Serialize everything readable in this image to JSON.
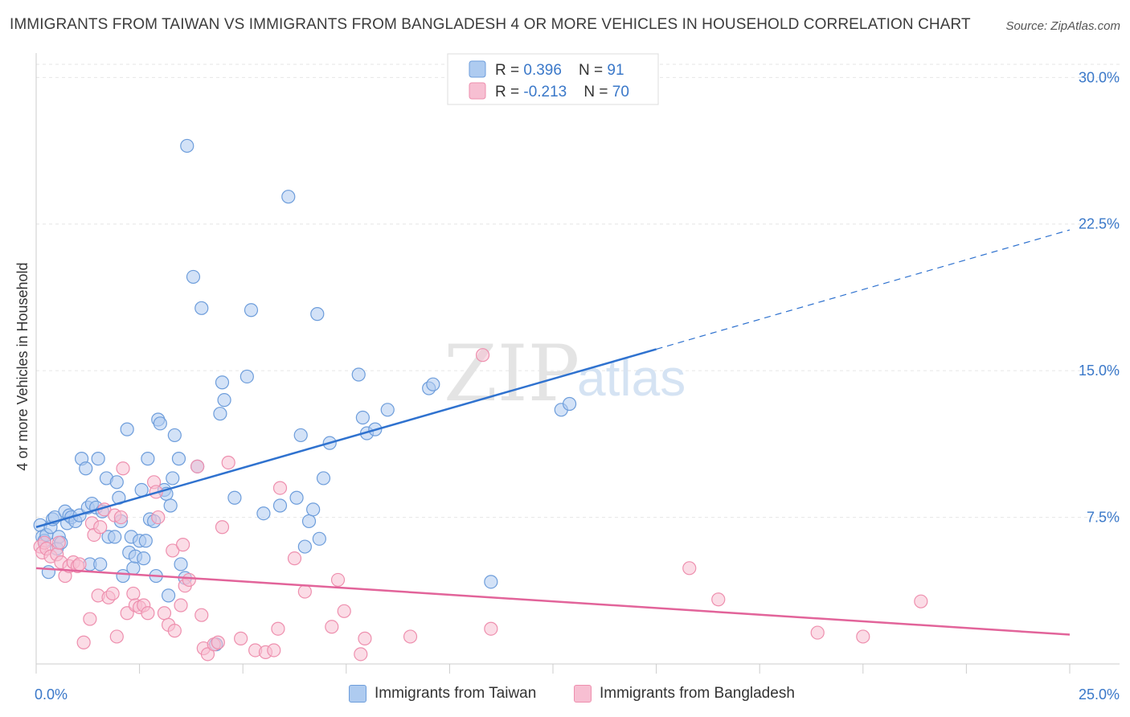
{
  "title": "IMMIGRANTS FROM TAIWAN VS IMMIGRANTS FROM BANGLADESH 4 OR MORE VEHICLES IN HOUSEHOLD CORRELATION CHART",
  "source": "Source: ZipAtlas.com",
  "watermark": {
    "zip": "ZIP",
    "atlas": "atlas"
  },
  "colors": {
    "taiwan_fill": "#aecbf0",
    "taiwan_stroke": "#6d9ddb",
    "taiwan_line": "#2f72cf",
    "bangladesh_fill": "#f7bfd2",
    "bangladesh_stroke": "#ee8fae",
    "bangladesh_line": "#e2649a",
    "tick_text": "#3a78c9",
    "grid": "#e6e6e6"
  },
  "stats": [
    {
      "r_label": "R = ",
      "r_value": "0.396",
      "n_label": "N = ",
      "n_value": "91"
    },
    {
      "r_label": "R = ",
      "r_value": "-0.213",
      "n_label": "N = ",
      "n_value": "70"
    }
  ],
  "bottom_legend": [
    {
      "label": "Immigrants from Taiwan",
      "color": "#aecbf0",
      "border": "#6d9ddb"
    },
    {
      "label": "Immigrants from Bangladesh",
      "color": "#f7bfd2",
      "border": "#ee8fae"
    }
  ],
  "chart_data": {
    "type": "scatter",
    "title": "IMMIGRANTS FROM TAIWAN VS IMMIGRANTS FROM BANGLADESH 4 OR MORE VEHICLES IN HOUSEHOLD CORRELATION CHART",
    "xlabel": "",
    "ylabel": "4 or more Vehicles in Household",
    "xlim": [
      0,
      25
    ],
    "ylim": [
      0,
      31
    ],
    "x_ticks": [
      {
        "v": 0,
        "label": "0.0%"
      },
      {
        "v": 25,
        "label": "25.0%"
      }
    ],
    "y_ticks": [
      {
        "v": 7.5,
        "label": "7.5%"
      },
      {
        "v": 15,
        "label": "15.0%"
      },
      {
        "v": 22.5,
        "label": "22.5%"
      },
      {
        "v": 30,
        "label": "30.0%"
      }
    ],
    "grid": true,
    "legend_position": "top-center",
    "series": [
      {
        "name": "Immigrants from Taiwan",
        "trend": {
          "x0": 0,
          "y0": 7.0,
          "x1": 15,
          "y1": 16.1,
          "x_dash_end": 25,
          "y_dash_end": 22.2
        },
        "points": [
          [
            0.1,
            7.1
          ],
          [
            0.15,
            6.5
          ],
          [
            0.2,
            6.3
          ],
          [
            0.25,
            6.6
          ],
          [
            0.3,
            4.7
          ],
          [
            0.35,
            7.0
          ],
          [
            0.4,
            7.4
          ],
          [
            0.45,
            7.5
          ],
          [
            0.5,
            5.9
          ],
          [
            0.55,
            6.5
          ],
          [
            0.6,
            6.2
          ],
          [
            0.7,
            7.8
          ],
          [
            0.75,
            7.2
          ],
          [
            0.8,
            7.6
          ],
          [
            0.85,
            7.5
          ],
          [
            0.95,
            7.3
          ],
          [
            1.05,
            7.6
          ],
          [
            1.1,
            10.5
          ],
          [
            1.2,
            10.0
          ],
          [
            1.25,
            8.0
          ],
          [
            1.3,
            5.1
          ],
          [
            1.35,
            8.2
          ],
          [
            1.45,
            8.0
          ],
          [
            1.5,
            10.5
          ],
          [
            1.55,
            5.1
          ],
          [
            1.6,
            7.8
          ],
          [
            1.7,
            9.5
          ],
          [
            1.75,
            6.5
          ],
          [
            1.9,
            6.5
          ],
          [
            1.95,
            9.3
          ],
          [
            2.0,
            8.5
          ],
          [
            2.05,
            7.3
          ],
          [
            2.1,
            4.5
          ],
          [
            2.2,
            12.0
          ],
          [
            2.25,
            5.7
          ],
          [
            2.3,
            6.5
          ],
          [
            2.35,
            4.9
          ],
          [
            2.4,
            5.5
          ],
          [
            2.5,
            6.3
          ],
          [
            2.55,
            8.9
          ],
          [
            2.6,
            5.4
          ],
          [
            2.65,
            6.3
          ],
          [
            2.7,
            10.5
          ],
          [
            2.75,
            7.4
          ],
          [
            2.85,
            7.3
          ],
          [
            2.9,
            4.5
          ],
          [
            2.95,
            12.5
          ],
          [
            3.0,
            12.3
          ],
          [
            3.1,
            8.9
          ],
          [
            3.15,
            8.7
          ],
          [
            3.2,
            3.5
          ],
          [
            3.25,
            8.1
          ],
          [
            3.3,
            9.5
          ],
          [
            3.35,
            11.7
          ],
          [
            3.45,
            10.5
          ],
          [
            3.5,
            5.1
          ],
          [
            3.6,
            4.4
          ],
          [
            3.65,
            26.5
          ],
          [
            3.8,
            19.8
          ],
          [
            3.9,
            10.1
          ],
          [
            4.0,
            18.2
          ],
          [
            4.35,
            1.0
          ],
          [
            4.45,
            12.8
          ],
          [
            4.5,
            14.4
          ],
          [
            4.55,
            13.5
          ],
          [
            4.8,
            8.5
          ],
          [
            5.1,
            14.7
          ],
          [
            5.2,
            18.1
          ],
          [
            5.5,
            7.7
          ],
          [
            5.9,
            8.1
          ],
          [
            6.1,
            23.9
          ],
          [
            6.3,
            8.5
          ],
          [
            6.4,
            11.7
          ],
          [
            6.5,
            6.0
          ],
          [
            6.6,
            7.3
          ],
          [
            6.7,
            7.9
          ],
          [
            6.8,
            17.9
          ],
          [
            6.85,
            6.4
          ],
          [
            6.95,
            9.5
          ],
          [
            7.1,
            11.3
          ],
          [
            7.8,
            14.8
          ],
          [
            7.9,
            12.6
          ],
          [
            8.0,
            11.8
          ],
          [
            8.2,
            12.0
          ],
          [
            8.5,
            13.0
          ],
          [
            9.5,
            14.1
          ],
          [
            9.6,
            14.3
          ],
          [
            11.0,
            4.2
          ],
          [
            12.7,
            13.0
          ],
          [
            12.9,
            13.3
          ]
        ]
      },
      {
        "name": "Immigrants from Bangladesh",
        "trend": {
          "x0": 0,
          "y0": 4.9,
          "x1": 25,
          "y1": 1.5
        },
        "points": [
          [
            0.1,
            6.0
          ],
          [
            0.15,
            5.7
          ],
          [
            0.2,
            6.2
          ],
          [
            0.25,
            5.9
          ],
          [
            0.35,
            5.5
          ],
          [
            0.5,
            5.6
          ],
          [
            0.55,
            6.2
          ],
          [
            0.6,
            5.2
          ],
          [
            0.7,
            4.5
          ],
          [
            0.8,
            5.0
          ],
          [
            0.9,
            5.2
          ],
          [
            1.0,
            5.0
          ],
          [
            1.05,
            5.1
          ],
          [
            1.15,
            1.1
          ],
          [
            1.3,
            2.3
          ],
          [
            1.35,
            7.2
          ],
          [
            1.4,
            6.6
          ],
          [
            1.5,
            3.5
          ],
          [
            1.55,
            7.0
          ],
          [
            1.65,
            7.9
          ],
          [
            1.75,
            3.4
          ],
          [
            1.85,
            3.6
          ],
          [
            1.9,
            7.6
          ],
          [
            1.95,
            1.4
          ],
          [
            2.05,
            7.5
          ],
          [
            2.1,
            10.0
          ],
          [
            2.2,
            2.6
          ],
          [
            2.35,
            3.6
          ],
          [
            2.4,
            3.0
          ],
          [
            2.5,
            2.9
          ],
          [
            2.6,
            3.0
          ],
          [
            2.7,
            2.6
          ],
          [
            2.85,
            9.3
          ],
          [
            2.9,
            8.8
          ],
          [
            2.95,
            7.5
          ],
          [
            3.1,
            2.6
          ],
          [
            3.2,
            2.0
          ],
          [
            3.3,
            5.8
          ],
          [
            3.35,
            1.7
          ],
          [
            3.5,
            3.0
          ],
          [
            3.55,
            6.1
          ],
          [
            3.6,
            4.0
          ],
          [
            3.7,
            4.3
          ],
          [
            3.9,
            10.1
          ],
          [
            4.0,
            2.5
          ],
          [
            4.05,
            0.8
          ],
          [
            4.15,
            0.5
          ],
          [
            4.3,
            1.0
          ],
          [
            4.4,
            1.1
          ],
          [
            4.5,
            7.0
          ],
          [
            4.65,
            10.3
          ],
          [
            4.95,
            1.3
          ],
          [
            5.3,
            0.7
          ],
          [
            5.55,
            0.6
          ],
          [
            5.75,
            0.7
          ],
          [
            5.85,
            1.8
          ],
          [
            5.9,
            9.0
          ],
          [
            6.25,
            5.4
          ],
          [
            6.5,
            3.7
          ],
          [
            7.15,
            1.9
          ],
          [
            7.3,
            4.3
          ],
          [
            7.45,
            2.7
          ],
          [
            7.85,
            0.5
          ],
          [
            7.95,
            1.3
          ],
          [
            9.05,
            1.4
          ],
          [
            10.8,
            15.8
          ],
          [
            11.0,
            1.8
          ],
          [
            15.8,
            4.9
          ],
          [
            16.5,
            3.3
          ],
          [
            18.9,
            1.6
          ],
          [
            20.0,
            1.4
          ],
          [
            21.4,
            3.2
          ]
        ]
      }
    ]
  }
}
